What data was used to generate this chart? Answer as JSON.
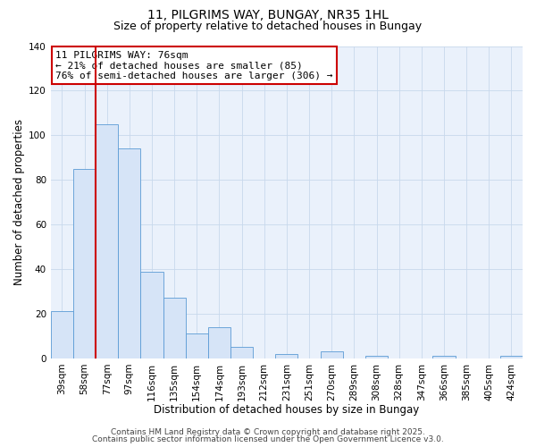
{
  "title": "11, PILGRIMS WAY, BUNGAY, NR35 1HL",
  "subtitle": "Size of property relative to detached houses in Bungay",
  "xlabel": "Distribution of detached houses by size in Bungay",
  "ylabel": "Number of detached properties",
  "bar_labels": [
    "39sqm",
    "58sqm",
    "77sqm",
    "97sqm",
    "116sqm",
    "135sqm",
    "154sqm",
    "174sqm",
    "193sqm",
    "212sqm",
    "231sqm",
    "251sqm",
    "270sqm",
    "289sqm",
    "308sqm",
    "328sqm",
    "347sqm",
    "366sqm",
    "385sqm",
    "405sqm",
    "424sqm"
  ],
  "bar_values": [
    21,
    85,
    105,
    94,
    39,
    27,
    11,
    14,
    5,
    0,
    2,
    0,
    3,
    0,
    1,
    0,
    0,
    1,
    0,
    0,
    1
  ],
  "bar_color": "#d6e4f7",
  "bar_edgecolor": "#5b9bd5",
  "property_line_index": 2,
  "property_line_color": "#cc0000",
  "ylim": [
    0,
    140
  ],
  "yticks": [
    0,
    20,
    40,
    60,
    80,
    100,
    120,
    140
  ],
  "annotation_line1": "11 PILGRIMS WAY: 76sqm",
  "annotation_line2": "← 21% of detached houses are smaller (85)",
  "annotation_line3": "76% of semi-detached houses are larger (306) →",
  "footer_line1": "Contains HM Land Registry data © Crown copyright and database right 2025.",
  "footer_line2": "Contains public sector information licensed under the Open Government Licence v3.0.",
  "background_color": "#ffffff",
  "plot_bg_color": "#eaf1fb",
  "grid_color": "#c8d8ec",
  "title_fontsize": 10,
  "subtitle_fontsize": 9,
  "axis_label_fontsize": 8.5,
  "tick_fontsize": 7.5,
  "annotation_fontsize": 8,
  "footer_fontsize": 6.5
}
